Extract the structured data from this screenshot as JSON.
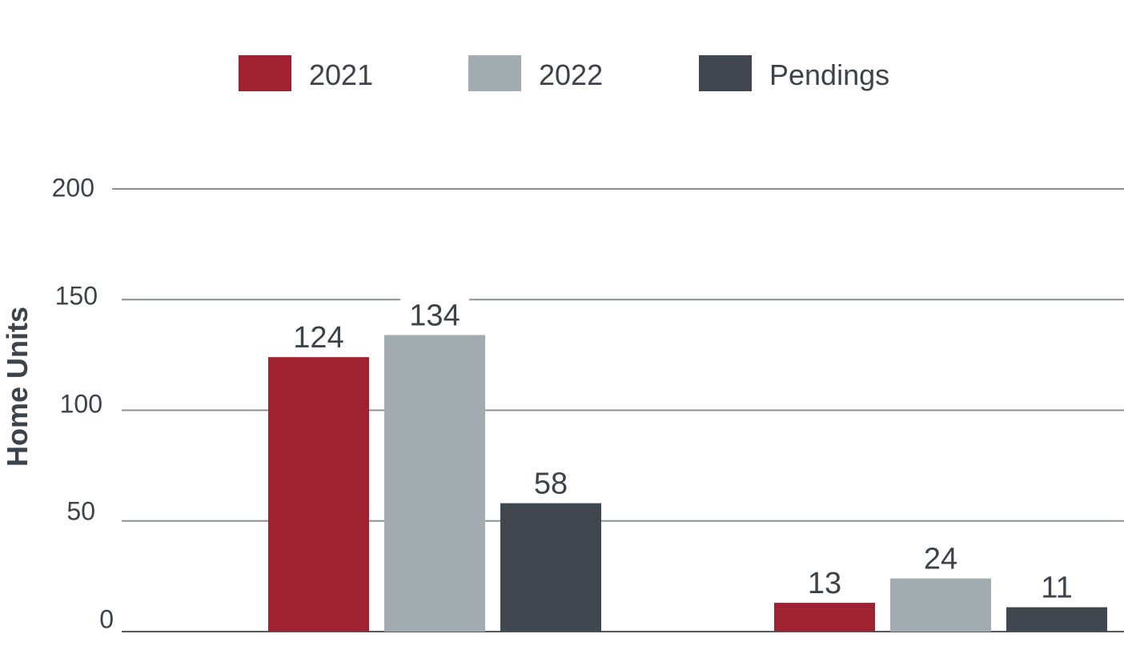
{
  "chart_data": {
    "type": "bar",
    "title": "",
    "xlabel": "",
    "ylabel": "Home Units",
    "ylim": [
      0,
      200
    ],
    "yticks": [
      0,
      50,
      100,
      150,
      200
    ],
    "grid": true,
    "legend_position": "top",
    "categories": [
      "",
      ""
    ],
    "series": [
      {
        "name": "2021",
        "color": "#a02231",
        "values": [
          124,
          13
        ]
      },
      {
        "name": "2022",
        "color": "#a2acb1",
        "values": [
          134,
          24
        ]
      },
      {
        "name": "Pendings",
        "color": "#41474e",
        "values": [
          58,
          11
        ]
      }
    ]
  }
}
